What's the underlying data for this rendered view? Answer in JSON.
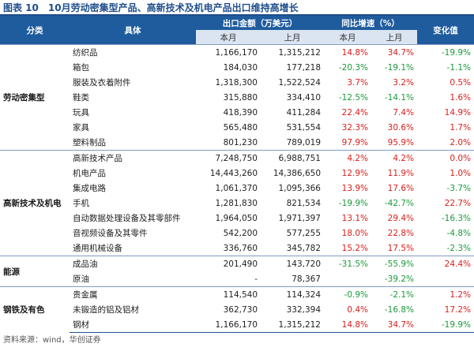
{
  "title": "图表 10　10月劳动密集型产品、高新技术及机电产品出口维持高增长",
  "header": {
    "category": "分类",
    "item": "具体",
    "export": "出口金额（万美元）",
    "growth": "同比增速（%）",
    "change": "变化值",
    "sub": [
      "本月",
      "上月",
      "本月",
      "上月"
    ]
  },
  "groups": [
    {
      "name": "劳动密集型",
      "rows": [
        [
          "纺织品",
          "1,166,170",
          "1,315,212",
          "14.8%",
          "34.7%",
          "-19.9%"
        ],
        [
          "箱包",
          "184,030",
          "177,218",
          "-20.3%",
          "-19.1%",
          "-1.1%"
        ],
        [
          "服装及衣着附件",
          "1,318,300",
          "1,522,524",
          "3.7%",
          "3.2%",
          "0.5%"
        ],
        [
          "鞋类",
          "315,880",
          "334,410",
          "-12.5%",
          "-14.1%",
          "1.6%"
        ],
        [
          "玩具",
          "418,390",
          "411,284",
          "22.4%",
          "7.4%",
          "14.9%"
        ],
        [
          "家具",
          "565,480",
          "531,554",
          "32.3%",
          "30.6%",
          "1.7%"
        ],
        [
          "塑料制品",
          "801,230",
          "789,019",
          "97.9%",
          "95.9%",
          "2.0%"
        ]
      ]
    },
    {
      "name": "高新技术及机电",
      "rows": [
        [
          "高新技术产品",
          "7,248,750",
          "6,988,751",
          "4.2%",
          "4.2%",
          "0.0%"
        ],
        [
          "机电产品",
          "14,443,260",
          "14,386,650",
          "12.9%",
          "11.9%",
          "1.0%"
        ],
        [
          "集成电路",
          "1,061,370",
          "1,095,366",
          "13.9%",
          "17.6%",
          "-3.7%"
        ],
        [
          "手机",
          "1,281,830",
          "821,534",
          "-19.9%",
          "-42.7%",
          "22.7%"
        ],
        [
          "自动数据处理设备及其零部件",
          "1,964,050",
          "1,971,397",
          "13.1%",
          "29.4%",
          "-16.3%"
        ],
        [
          "音视频设备及其零件",
          "542,200",
          "577,255",
          "18.0%",
          "22.8%",
          "-4.8%"
        ],
        [
          "通用机械设备",
          "336,760",
          "345,782",
          "15.2%",
          "17.5%",
          "-2.3%"
        ]
      ]
    },
    {
      "name": "能源",
      "rows": [
        [
          "成品油",
          "201,490",
          "143,720",
          "-31.5%",
          "-55.9%",
          "24.4%"
        ],
        [
          "原油",
          "-",
          "78,367",
          null,
          "-39.2%",
          null
        ]
      ]
    },
    {
      "name": "钢铁及有色",
      "rows": [
        [
          "贵金属",
          "114,540",
          "114,324",
          "-0.9%",
          "-2.1%",
          "1.2%"
        ],
        [
          "未锻造的铝及铝材",
          "362,730",
          "332,394",
          "0.4%",
          "-16.8%",
          "17.2%"
        ],
        [
          "钢材",
          "1,166,170",
          "1,315,212",
          "14.8%",
          "34.7%",
          "-19.9%"
        ]
      ]
    }
  ],
  "source": "资料来源：wind，华创证券"
}
